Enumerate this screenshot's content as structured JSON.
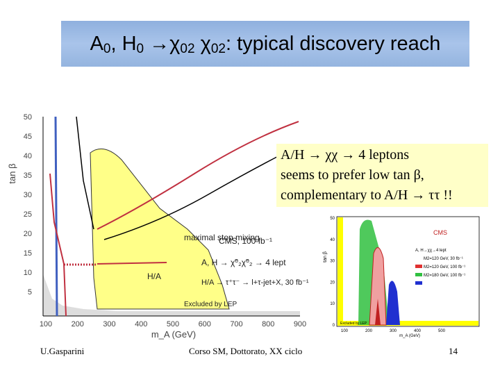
{
  "title": {
    "parts": [
      "A",
      "0",
      ", H",
      "0",
      " →χ",
      "02",
      " χ",
      "02",
      ": typical discovery reach"
    ]
  },
  "callout": {
    "lines": [
      "A/H → χχ → 4 leptons",
      "seems to prefer low tan β,",
      "complementary to A/H → ττ !!"
    ]
  },
  "main_plot": {
    "x_label": "m_A (GeV)",
    "y_label": "tan β",
    "xticks": [
      100,
      200,
      300,
      400,
      500,
      600,
      700,
      800,
      900
    ],
    "yticks": [
      5,
      10,
      15,
      20,
      25,
      30,
      35,
      40,
      45,
      50
    ],
    "annotations": [
      "CMS, 100 fb⁻¹",
      "maximal stop mixing",
      "A, H → χ̃⁰₂χ̃⁰₂ → 4 lept",
      "H/A → τ⁺τ⁻ → l+τ-jet+X, 30 fb⁻¹",
      "H/A",
      "Excluded by LEP"
    ]
  },
  "small_plot": {
    "title": "CMS",
    "x_label": "m_A (GeV)",
    "y_label": "tan β",
    "xticks": [
      100,
      200,
      300,
      400,
      500
    ],
    "yticks": [
      0,
      10,
      20,
      30,
      40,
      50
    ],
    "legend": [
      "A, H→χχ→4 lept",
      "M2=120 GeV, 30 fb⁻¹",
      "M2=120 GeV, 100 fb⁻¹",
      "M2=180 GeV, 100 fb⁻¹"
    ],
    "note": "Excluded by LEP"
  },
  "footer": {
    "left": "U.Gasparini",
    "center": "Corso SM, Dottorato, XX ciclo",
    "page": "14"
  }
}
